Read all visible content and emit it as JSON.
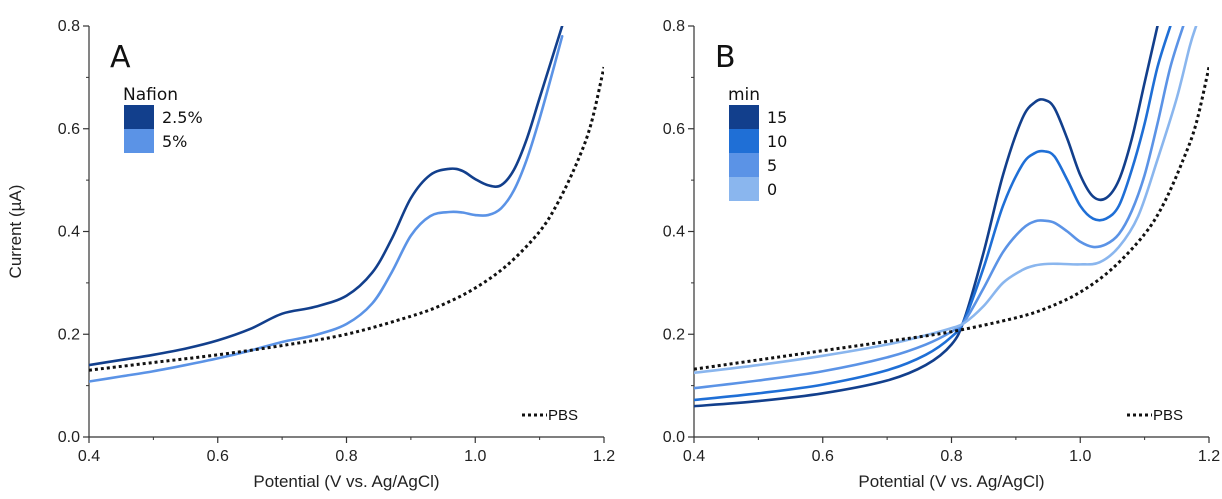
{
  "chart_data": [
    {
      "type": "line",
      "panel_label": "A",
      "xlabel": "Potential (V vs. Ag/AgCl)",
      "ylabel": "Current (µA)",
      "xlim": [
        0.4,
        1.2
      ],
      "ylim": [
        0.0,
        0.8
      ],
      "xticks": [
        "0.4",
        "0.6",
        "0.8",
        "1.0",
        "1.2"
      ],
      "yticks": [
        "0.0",
        "0.2",
        "0.4",
        "0.6",
        "0.8"
      ],
      "legend_title": "Nafion",
      "legend_placement": "top-left",
      "pbs_legend": "PBS",
      "series": [
        {
          "name": "2.5%",
          "color": "#123f8c",
          "x": [
            0.4,
            0.45,
            0.5,
            0.55,
            0.6,
            0.65,
            0.7,
            0.75,
            0.8,
            0.84,
            0.87,
            0.9,
            0.93,
            0.96,
            0.98,
            1.0,
            1.02,
            1.04,
            1.06,
            1.08,
            1.1,
            1.12,
            1.135
          ],
          "y": [
            0.14,
            0.15,
            0.16,
            0.172,
            0.188,
            0.21,
            0.24,
            0.253,
            0.275,
            0.32,
            0.385,
            0.465,
            0.51,
            0.522,
            0.518,
            0.502,
            0.49,
            0.49,
            0.52,
            0.58,
            0.66,
            0.74,
            0.8
          ]
        },
        {
          "name": "5%",
          "color": "#5b93e6",
          "x": [
            0.4,
            0.45,
            0.5,
            0.55,
            0.6,
            0.65,
            0.7,
            0.75,
            0.8,
            0.84,
            0.87,
            0.9,
            0.93,
            0.96,
            0.98,
            1.0,
            1.02,
            1.04,
            1.06,
            1.08,
            1.1,
            1.12,
            1.135
          ],
          "y": [
            0.108,
            0.118,
            0.128,
            0.14,
            0.153,
            0.168,
            0.185,
            0.198,
            0.22,
            0.26,
            0.32,
            0.392,
            0.43,
            0.438,
            0.437,
            0.432,
            0.432,
            0.445,
            0.48,
            0.54,
            0.62,
            0.71,
            0.78
          ]
        },
        {
          "name": "PBS",
          "color": "#111111",
          "dashed": true,
          "x": [
            0.4,
            0.5,
            0.6,
            0.7,
            0.8,
            0.9,
            0.95,
            1.0,
            1.05,
            1.1,
            1.13,
            1.16,
            1.18,
            1.2
          ],
          "y": [
            0.13,
            0.145,
            0.16,
            0.178,
            0.2,
            0.235,
            0.258,
            0.29,
            0.335,
            0.4,
            0.46,
            0.54,
            0.61,
            0.72
          ]
        }
      ]
    },
    {
      "type": "line",
      "panel_label": "B",
      "xlabel": "Potential (V vs. Ag/AgCl)",
      "ylabel": "",
      "xlim": [
        0.4,
        1.2
      ],
      "ylim": [
        0.0,
        0.8
      ],
      "xticks": [
        "0.4",
        "0.6",
        "0.8",
        "1.0",
        "1.2"
      ],
      "yticks": [
        "0.0",
        "0.2",
        "0.4",
        "0.6",
        "0.8"
      ],
      "legend_title": "min",
      "legend_placement": "top-left",
      "pbs_legend": "PBS",
      "series": [
        {
          "name": "15",
          "color": "#123f8c",
          "x": [
            0.4,
            0.5,
            0.6,
            0.7,
            0.76,
            0.8,
            0.82,
            0.85,
            0.88,
            0.91,
            0.93,
            0.945,
            0.96,
            0.98,
            1.0,
            1.02,
            1.04,
            1.06,
            1.08,
            1.1,
            1.12
          ],
          "y": [
            0.06,
            0.07,
            0.085,
            0.11,
            0.14,
            0.18,
            0.23,
            0.36,
            0.51,
            0.62,
            0.652,
            0.656,
            0.64,
            0.58,
            0.51,
            0.468,
            0.465,
            0.5,
            0.58,
            0.69,
            0.8
          ]
        },
        {
          "name": "10",
          "color": "#1f6fd6",
          "x": [
            0.4,
            0.5,
            0.6,
            0.7,
            0.76,
            0.8,
            0.82,
            0.85,
            0.88,
            0.91,
            0.93,
            0.945,
            0.96,
            0.98,
            1.0,
            1.02,
            1.04,
            1.06,
            1.08,
            1.1,
            1.12,
            1.14
          ],
          "y": [
            0.072,
            0.085,
            0.102,
            0.13,
            0.16,
            0.195,
            0.228,
            0.33,
            0.45,
            0.53,
            0.553,
            0.556,
            0.546,
            0.5,
            0.45,
            0.425,
            0.425,
            0.45,
            0.52,
            0.61,
            0.72,
            0.8
          ]
        },
        {
          "name": "5",
          "color": "#5b93e6",
          "x": [
            0.4,
            0.5,
            0.6,
            0.7,
            0.76,
            0.8,
            0.82,
            0.85,
            0.88,
            0.91,
            0.93,
            0.945,
            0.96,
            0.98,
            1.0,
            1.02,
            1.04,
            1.06,
            1.08,
            1.1,
            1.12,
            1.14,
            1.16
          ],
          "y": [
            0.095,
            0.11,
            0.128,
            0.155,
            0.18,
            0.205,
            0.225,
            0.29,
            0.36,
            0.405,
            0.42,
            0.421,
            0.417,
            0.4,
            0.38,
            0.37,
            0.375,
            0.395,
            0.44,
            0.51,
            0.61,
            0.72,
            0.8
          ]
        },
        {
          "name": "0",
          "color": "#8ab6ee",
          "x": [
            0.4,
            0.5,
            0.6,
            0.7,
            0.76,
            0.8,
            0.82,
            0.85,
            0.88,
            0.91,
            0.93,
            0.95,
            0.97,
            1.0,
            1.03,
            1.06,
            1.09,
            1.12,
            1.15,
            1.17,
            1.18
          ],
          "y": [
            0.125,
            0.14,
            0.158,
            0.18,
            0.198,
            0.212,
            0.222,
            0.255,
            0.3,
            0.325,
            0.334,
            0.337,
            0.337,
            0.336,
            0.34,
            0.37,
            0.43,
            0.54,
            0.66,
            0.76,
            0.8
          ]
        },
        {
          "name": "PBS",
          "color": "#111111",
          "dashed": true,
          "x": [
            0.4,
            0.5,
            0.6,
            0.7,
            0.8,
            0.9,
            0.95,
            1.0,
            1.05,
            1.1,
            1.13,
            1.16,
            1.18,
            1.2
          ],
          "y": [
            0.132,
            0.15,
            0.168,
            0.186,
            0.205,
            0.232,
            0.252,
            0.282,
            0.328,
            0.395,
            0.455,
            0.54,
            0.61,
            0.72
          ]
        }
      ]
    }
  ]
}
